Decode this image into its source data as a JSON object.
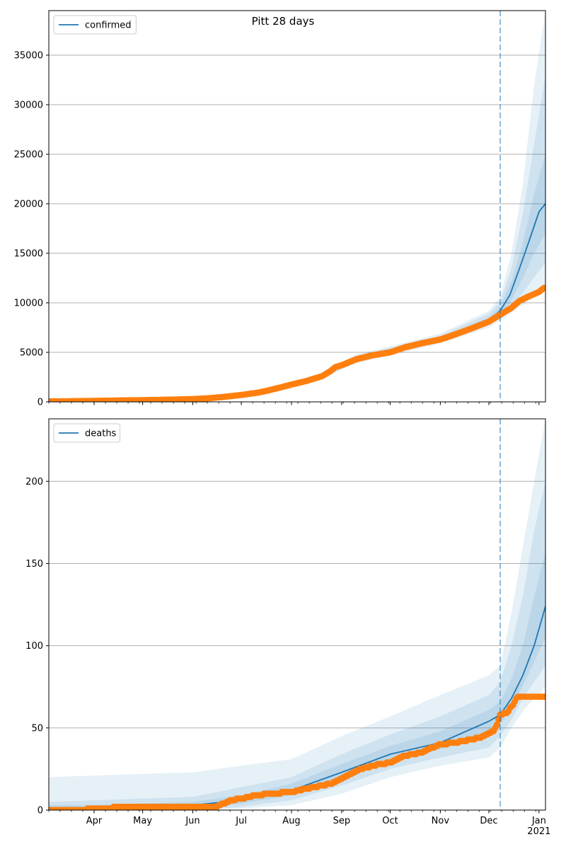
{
  "title": "Pitt 28 days",
  "chart_data": [
    {
      "type": "line",
      "name": "confirmed-panel",
      "legend": [
        "confirmed"
      ],
      "legend_position": "top-left",
      "grid": "y",
      "xlim": [
        "2020-03-04",
        "2021-01-05"
      ],
      "ylim": [
        0,
        39500
      ],
      "yticks": [
        0,
        5000,
        10000,
        15000,
        20000,
        25000,
        30000,
        35000
      ],
      "forecast_start": "2020-12-08",
      "line_color": "#1f77b4",
      "points_color": "#ff7f0e",
      "observed": {
        "x": [
          "2020-03-04",
          "2020-03-15",
          "2020-03-25",
          "2020-04-01",
          "2020-04-10",
          "2020-04-20",
          "2020-05-01",
          "2020-05-10",
          "2020-05-20",
          "2020-06-01",
          "2020-06-10",
          "2020-06-20",
          "2020-07-01",
          "2020-07-10",
          "2020-07-15",
          "2020-07-20",
          "2020-07-25",
          "2020-08-01",
          "2020-08-10",
          "2020-08-20",
          "2020-08-25",
          "2020-08-28",
          "2020-09-01",
          "2020-09-10",
          "2020-09-20",
          "2020-10-01",
          "2020-10-10",
          "2020-10-20",
          "2020-11-01",
          "2020-11-10",
          "2020-11-20",
          "2020-12-01",
          "2020-12-10",
          "2020-12-15",
          "2020-12-20",
          "2020-12-25",
          "2021-01-01",
          "2021-01-04"
        ],
        "y": [
          50,
          60,
          80,
          100,
          120,
          150,
          170,
          200,
          230,
          280,
          360,
          500,
          700,
          900,
          1050,
          1250,
          1450,
          1750,
          2100,
          2600,
          3100,
          3500,
          3700,
          4300,
          4700,
          5000,
          5500,
          5900,
          6300,
          6800,
          7400,
          8100,
          9000,
          9500,
          10200,
          10600,
          11100,
          11500
        ]
      },
      "forecast_median": {
        "x": [
          "2020-11-20",
          "2020-12-01",
          "2020-12-08",
          "2020-12-14",
          "2020-12-20",
          "2020-12-26",
          "2021-01-01",
          "2021-01-05"
        ],
        "y": [
          7400,
          8200,
          9200,
          10800,
          13500,
          16300,
          19200,
          20000
        ]
      },
      "uncertainty_bands": [
        {
          "x": [
            "2020-08-20",
            "2020-09-10",
            "2020-10-01",
            "2020-11-01",
            "2020-12-01",
            "2020-12-08",
            "2020-12-15",
            "2020-12-22",
            "2020-12-29",
            "2021-01-05"
          ],
          "lower": [
            2300,
            3900,
            4700,
            5900,
            7500,
            8200,
            9000,
            9800,
            10600,
            11300
          ],
          "upper": [
            2900,
            4800,
            5600,
            6900,
            9200,
            10600,
            15000,
            22000,
            32000,
            39500
          ]
        },
        {
          "x": [
            "2020-08-20",
            "2020-09-10",
            "2020-10-01",
            "2020-11-01",
            "2020-12-01",
            "2020-12-08",
            "2020-12-15",
            "2020-12-22",
            "2020-12-29",
            "2021-01-05"
          ],
          "lower": [
            2400,
            4050,
            4850,
            6100,
            7750,
            8500,
            9700,
            11000,
            12600,
            14000
          ],
          "upper": [
            2800,
            4650,
            5450,
            6700,
            8900,
            10100,
            13500,
            19000,
            26000,
            33000
          ]
        },
        {
          "x": [
            "2020-08-20",
            "2020-09-10",
            "2020-10-01",
            "2020-11-01",
            "2020-12-01",
            "2020-12-08",
            "2020-12-15",
            "2020-12-22",
            "2020-12-29",
            "2021-01-05"
          ],
          "lower": [
            2500,
            4200,
            5000,
            6300,
            8000,
            8800,
            10300,
            12500,
            15000,
            17000
          ],
          "upper": [
            2700,
            4500,
            5300,
            6500,
            8500,
            9600,
            12200,
            16000,
            21000,
            25000
          ]
        }
      ]
    },
    {
      "type": "line",
      "name": "deaths-panel",
      "legend": [
        "deaths"
      ],
      "legend_position": "top-left",
      "grid": "y",
      "xlim": [
        "2020-03-04",
        "2021-01-05"
      ],
      "ylim": [
        0,
        238
      ],
      "yticks": [
        0,
        50,
        100,
        150,
        200
      ],
      "forecast_start": "2020-12-08",
      "line_color": "#1f77b4",
      "points_color": "#ff7f0e",
      "observed": {
        "x": [
          "2020-03-04",
          "2020-03-20",
          "2020-04-05",
          "2020-04-20",
          "2020-05-10",
          "2020-06-01",
          "2020-06-15",
          "2020-06-20",
          "2020-06-25",
          "2020-07-01",
          "2020-07-10",
          "2020-07-20",
          "2020-08-01",
          "2020-08-15",
          "2020-08-25",
          "2020-09-01",
          "2020-09-10",
          "2020-09-20",
          "2020-10-01",
          "2020-10-10",
          "2020-10-20",
          "2020-11-01",
          "2020-11-10",
          "2020-11-25",
          "2020-12-04",
          "2020-12-06",
          "2020-12-08",
          "2020-12-12",
          "2020-12-16",
          "2020-12-18",
          "2020-12-20",
          "2020-12-25",
          "2021-01-04"
        ],
        "y": [
          0,
          0,
          1,
          2,
          2,
          2,
          2,
          4,
          6,
          7,
          9,
          10,
          11,
          14,
          16,
          19,
          24,
          27,
          29,
          33,
          35,
          40,
          41,
          44,
          48,
          52,
          58,
          59,
          64,
          68,
          69,
          69,
          69
        ]
      },
      "forecast_median": {
        "x": [
          "2020-06-01",
          "2020-07-01",
          "2020-08-01",
          "2020-09-01",
          "2020-10-01",
          "2020-11-01",
          "2020-12-01",
          "2020-12-08",
          "2020-12-15",
          "2020-12-22",
          "2020-12-29",
          "2021-01-05"
        ],
        "y": [
          3,
          6,
          12,
          23,
          34,
          41,
          54,
          58,
          68,
          82,
          100,
          124
        ]
      },
      "uncertainty_bands": [
        {
          "x": [
            "2020-03-04",
            "2020-04-01",
            "2020-05-01",
            "2020-06-01",
            "2020-07-01",
            "2020-08-01",
            "2020-09-01",
            "2020-10-01",
            "2020-11-01",
            "2020-12-01",
            "2020-12-08",
            "2020-12-15",
            "2020-12-22",
            "2020-12-29",
            "2021-01-05"
          ],
          "lower": [
            0,
            0,
            0,
            0,
            1,
            3,
            10,
            20,
            27,
            32,
            38,
            50,
            60,
            68,
            75
          ],
          "upper": [
            20,
            21,
            22,
            23,
            27,
            31,
            45,
            57,
            70,
            82,
            88,
            120,
            160,
            200,
            238
          ]
        },
        {
          "x": [
            "2020-03-04",
            "2020-04-01",
            "2020-05-01",
            "2020-06-01",
            "2020-07-01",
            "2020-08-01",
            "2020-09-01",
            "2020-10-01",
            "2020-11-01",
            "2020-12-01",
            "2020-12-08",
            "2020-12-15",
            "2020-12-22",
            "2020-12-29",
            "2021-01-05"
          ],
          "lower": [
            0,
            0,
            0,
            0,
            2,
            6,
            15,
            25,
            32,
            38,
            45,
            55,
            68,
            78,
            88
          ],
          "upper": [
            5,
            6,
            7,
            8,
            14,
            20,
            34,
            46,
            57,
            70,
            78,
            100,
            130,
            170,
            200
          ]
        },
        {
          "x": [
            "2020-03-04",
            "2020-04-01",
            "2020-05-01",
            "2020-06-01",
            "2020-07-01",
            "2020-08-01",
            "2020-09-01",
            "2020-10-01",
            "2020-11-01",
            "2020-12-01",
            "2020-12-08",
            "2020-12-15",
            "2020-12-22",
            "2020-12-29",
            "2021-01-05"
          ],
          "lower": [
            0,
            0,
            0,
            1,
            4,
            9,
            19,
            30,
            37,
            46,
            52,
            62,
            76,
            90,
            105
          ],
          "upper": [
            3,
            3,
            4,
            5,
            9,
            16,
            28,
            39,
            48,
            61,
            66,
            80,
            100,
            130,
            157
          ]
        }
      ]
    }
  ],
  "x_axis": {
    "month_labels": [
      "Apr",
      "May",
      "Jun",
      "Jul",
      "Aug",
      "Sep",
      "Oct",
      "Nov",
      "Dec",
      "Jan"
    ],
    "month_dates": [
      "2020-04-01",
      "2020-05-01",
      "2020-06-01",
      "2020-07-01",
      "2020-08-01",
      "2020-09-01",
      "2020-10-01",
      "2020-11-01",
      "2020-12-01",
      "2021-01-01"
    ],
    "year_label": "2021"
  }
}
